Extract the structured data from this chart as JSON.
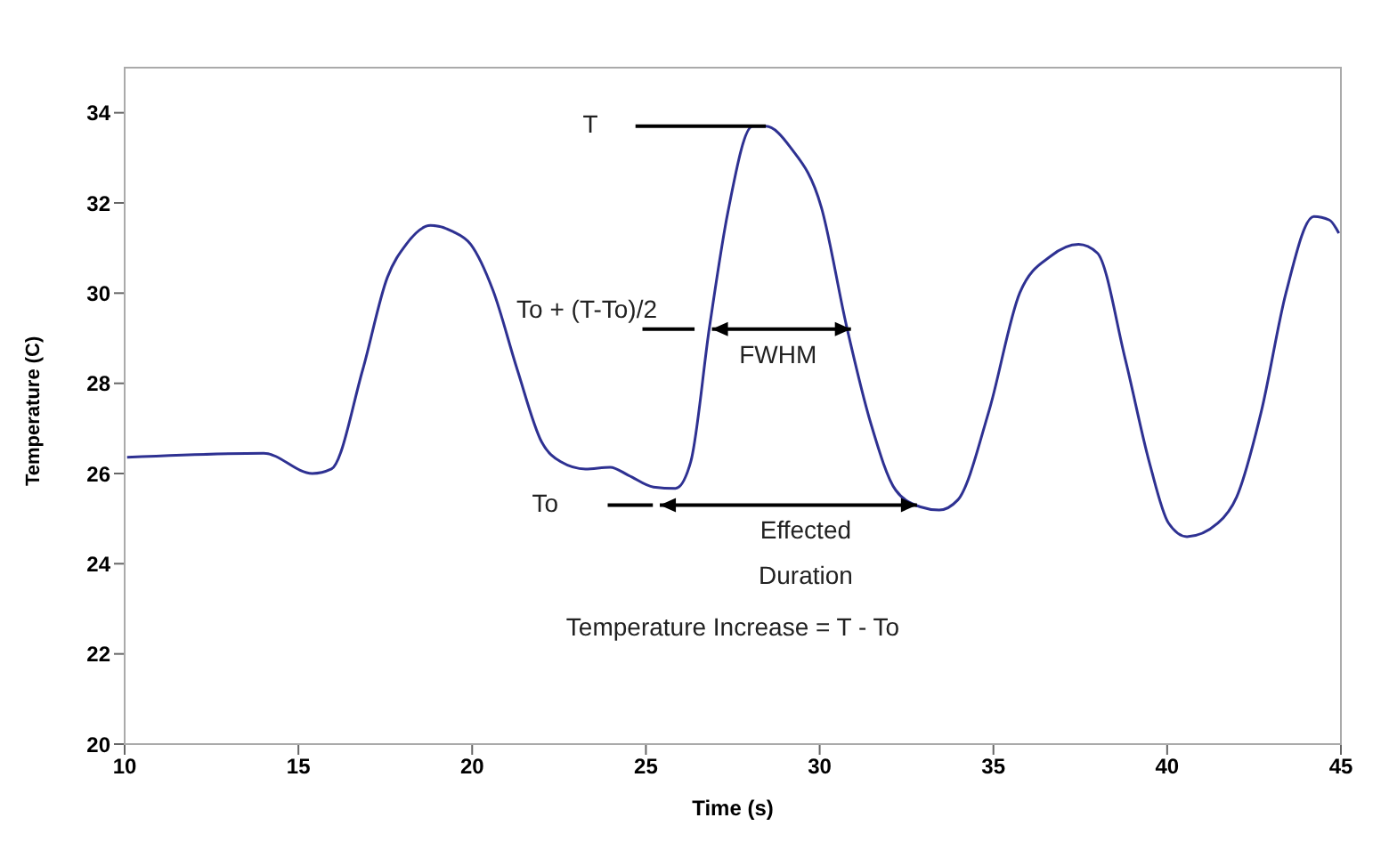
{
  "chart_data": {
    "type": "line",
    "xlabel": "Time (s)",
    "ylabel": "Temperature (C)",
    "x": [
      10.07,
      14.0,
      15.4,
      15.95,
      16.85,
      17.56,
      18.1,
      18.8,
      19.43,
      19.96,
      20.6,
      21.3,
      22.0,
      22.55,
      23.26,
      23.97,
      24.5,
      25.22,
      25.85,
      26.29,
      26.83,
      27.36,
      28.07,
      28.45,
      29.16,
      30.05,
      30.77,
      31.48,
      32.19,
      32.9,
      33.44,
      33.97,
      34.87,
      35.76,
      36.65,
      37.45,
      37.99,
      38.79,
      39.5,
      40.04,
      40.57,
      41.46,
      42.0,
      42.71,
      43.42,
      44.22,
      44.67,
      44.94
    ],
    "series": [
      {
        "color": "#2e3192",
        "values": [
          26.36,
          26.45,
          26.0,
          26.1,
          28.3,
          30.35,
          31.08,
          31.5,
          31.37,
          31.08,
          30.06,
          28.3,
          26.7,
          26.26,
          26.1,
          26.14,
          25.96,
          25.7,
          25.67,
          26.26,
          29.25,
          31.8,
          33.7,
          33.7,
          33.23,
          31.9,
          29.28,
          27.09,
          25.63,
          25.26,
          25.19,
          25.41,
          27.38,
          30.01,
          30.82,
          31.08,
          30.89,
          28.55,
          26.21,
          24.9,
          24.6,
          24.9,
          25.48,
          27.38,
          30.01,
          31.7,
          31.62,
          31.33
        ]
      }
    ],
    "xlim": [
      10,
      45
    ],
    "xticks": [
      10,
      15,
      20,
      25,
      30,
      35,
      40,
      45
    ],
    "ylim": [
      20,
      35
    ],
    "yticks": [
      20,
      22,
      24,
      26,
      28,
      30,
      32,
      34
    ],
    "grid": false,
    "legend": false,
    "marker": "none",
    "line_style": "solid",
    "annotations": [
      "T",
      "To + (T-To)/2",
      "FWHM",
      "To",
      "Effected",
      "Duration",
      "Temperature Increase = T - To"
    ]
  }
}
